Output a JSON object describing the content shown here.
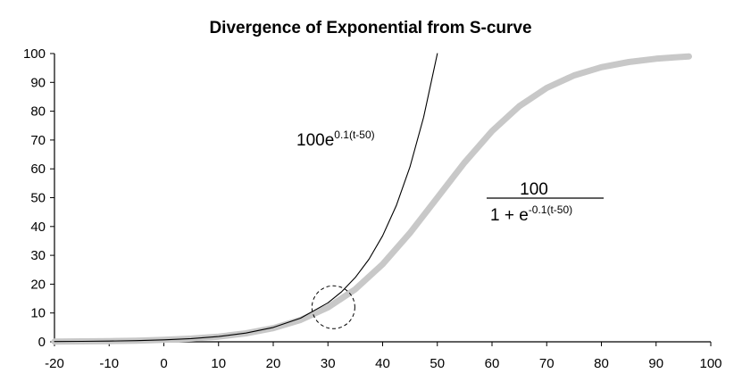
{
  "chart_data": {
    "type": "line",
    "title": "Divergence of Exponential from S-curve",
    "xlabel": "",
    "ylabel": "",
    "xlim": [
      -20,
      100
    ],
    "ylim": [
      0,
      100
    ],
    "x_ticks": [
      -20,
      -10,
      0,
      10,
      20,
      30,
      40,
      50,
      60,
      70,
      80,
      90,
      100
    ],
    "y_ticks": [
      0,
      10,
      20,
      30,
      40,
      50,
      60,
      70,
      80,
      90,
      100
    ],
    "grid": false,
    "legend": "none",
    "series": [
      {
        "color": "#c8c8c8",
        "x": [
          -20,
          -15,
          -10,
          -5,
          0,
          5,
          10,
          15,
          20,
          25,
          30,
          35,
          40,
          45,
          50,
          55,
          60,
          65,
          70,
          75,
          80,
          85,
          90,
          95,
          96
        ],
        "y": [
          0.09,
          0.15,
          0.25,
          0.41,
          0.67,
          1.1,
          1.8,
          2.93,
          4.74,
          7.59,
          11.92,
          18.24,
          26.89,
          37.75,
          50.0,
          62.25,
          73.11,
          81.76,
          88.08,
          92.41,
          95.26,
          97.07,
          98.2,
          98.9,
          99.0
        ]
      },
      {
        "color": "#000000",
        "x": [
          -20,
          -15,
          -10,
          -5,
          0,
          5,
          10,
          15,
          20,
          25,
          30,
          32.5,
          35,
          37.5,
          40,
          42.5,
          45,
          47.5,
          50
        ],
        "y": [
          0.09,
          0.15,
          0.25,
          0.41,
          0.67,
          1.11,
          1.83,
          3.02,
          4.98,
          8.21,
          13.53,
          17.38,
          22.31,
          28.65,
          36.79,
          47.24,
          60.65,
          77.88,
          100.0
        ]
      }
    ],
    "annotations": {
      "exponential": {
        "base": "100e",
        "exponent": "0.1(t-50)"
      },
      "logistic": {
        "numerator": "100",
        "denominator_base": "1 + e",
        "denominator_exponent": "-0.1(t-50)"
      },
      "divergence_marker": {
        "center": [
          31,
          12
        ],
        "shape": "dashed circle"
      }
    }
  }
}
